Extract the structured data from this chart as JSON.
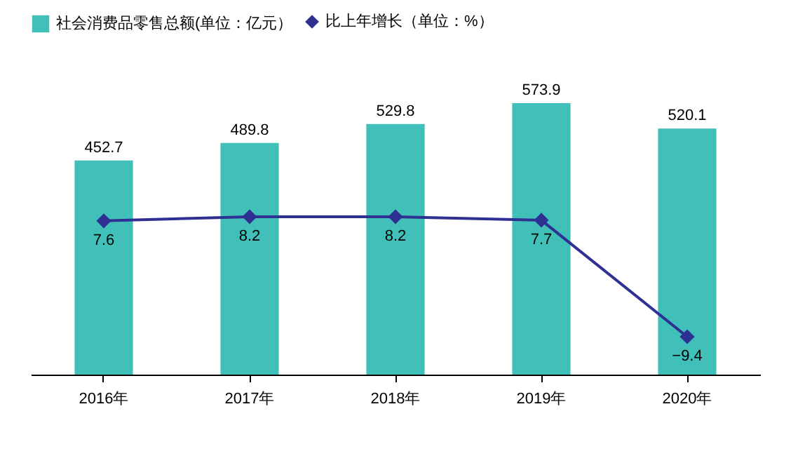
{
  "chart_data": {
    "type": "bar",
    "categories": [
      "2016年",
      "2017年",
      "2018年",
      "2019年",
      "2020年"
    ],
    "series": [
      {
        "name": "社会消费品零售总额(单位：亿元）",
        "color": "#40c0b8",
        "values": [
          452.7,
          489.8,
          529.8,
          573.9,
          520.1
        ]
      },
      {
        "name": "比上年增长（单位：%）",
        "type": "line",
        "axis": "y2",
        "color": "#2e3192",
        "values": [
          7.6,
          8.2,
          8.2,
          7.7,
          -9.4
        ]
      }
    ],
    "data_labels": true,
    "legend": "top",
    "marker": "diamond",
    "tick_labels": "x"
  }
}
